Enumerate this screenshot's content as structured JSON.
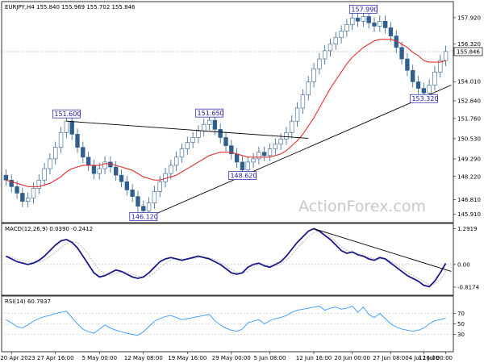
{
  "chart_data": {
    "type": "candlestick",
    "header": "EURJPY,H4  155.840 155.969 155.702 155.846",
    "watermark": "ActionForex.com",
    "colors": {
      "candle": "#2f5f8f",
      "ma": "#e03030",
      "trend": "#000000",
      "macd": "#1a1a8c",
      "signal": "#b8b8b8",
      "rsi": "#3399ff",
      "label_border": "#1a1aa0"
    },
    "price_panel": {
      "ylim": [
        145.5,
        158.8
      ],
      "yticks": [
        "157.920",
        "156.320",
        "154.010",
        "152.840",
        "151.760",
        "150.530",
        "149.290",
        "148.220",
        "146.810",
        "145.910"
      ],
      "ytick_values": [
        157.92,
        156.32,
        154.01,
        152.84,
        151.76,
        150.53,
        149.29,
        148.22,
        146.81,
        145.91
      ],
      "current_price": "155.846",
      "current_value": 155.846,
      "close": [
        148.0,
        147.6,
        147.2,
        146.7,
        146.9,
        147.5,
        148.0,
        148.7,
        149.3,
        150.0,
        150.9,
        151.6,
        150.8,
        150.0,
        149.4,
        148.9,
        148.4,
        148.7,
        149.1,
        148.8,
        148.3,
        147.9,
        147.4,
        147.0,
        146.4,
        146.12,
        146.6,
        147.3,
        147.9,
        148.4,
        148.9,
        149.4,
        149.9,
        150.3,
        150.6,
        151.0,
        151.4,
        151.65,
        151.1,
        150.6,
        150.1,
        149.6,
        149.1,
        148.62,
        149.1,
        149.3,
        149.7,
        149.5,
        149.9,
        150.2,
        150.5,
        150.9,
        151.6,
        152.4,
        153.2,
        154.0,
        154.8,
        155.4,
        155.9,
        156.3,
        156.7,
        157.1,
        157.5,
        157.9,
        157.7,
        157.99,
        157.6,
        157.4,
        157.7,
        157.3,
        156.8,
        156.1,
        155.4,
        154.7,
        154.0,
        153.6,
        153.32,
        153.8,
        154.6,
        155.3,
        155.85
      ],
      "ma": [
        148.0,
        147.9,
        147.8,
        147.7,
        147.6,
        147.6,
        147.6,
        147.7,
        147.8,
        148.0,
        148.2,
        148.5,
        148.7,
        148.8,
        148.9,
        148.9,
        148.9,
        148.9,
        149.0,
        149.0,
        148.9,
        148.8,
        148.7,
        148.6,
        148.4,
        148.2,
        148.1,
        148.0,
        148.0,
        148.1,
        148.2,
        148.3,
        148.5,
        148.7,
        148.9,
        149.1,
        149.3,
        149.5,
        149.6,
        149.7,
        149.7,
        149.7,
        149.6,
        149.5,
        149.4,
        149.4,
        149.4,
        149.4,
        149.4,
        149.5,
        149.6,
        149.8,
        150.1,
        150.4,
        150.8,
        151.3,
        151.8,
        152.4,
        153.0,
        153.6,
        154.1,
        154.6,
        155.1,
        155.5,
        155.8,
        156.1,
        156.3,
        156.5,
        156.6,
        156.6,
        156.6,
        156.5,
        156.3,
        156.1,
        155.8,
        155.6,
        155.3,
        155.2,
        155.2,
        155.2,
        155.3
      ],
      "labels": [
        {
          "text": "157.990",
          "i": 65,
          "v": 157.99,
          "pos": "above"
        },
        {
          "text": "151.600",
          "i": 11,
          "v": 151.6,
          "pos": "above"
        },
        {
          "text": "151.650",
          "i": 37,
          "v": 151.65,
          "pos": "above"
        },
        {
          "text": "148.620",
          "i": 43,
          "v": 148.62,
          "pos": "below"
        },
        {
          "text": "146.120",
          "i": 25,
          "v": 146.12,
          "pos": "below"
        },
        {
          "text": "153.320",
          "i": 76,
          "v": 153.32,
          "pos": "below"
        }
      ],
      "trendlines": [
        {
          "i1": 11,
          "v1": 151.6,
          "i2": 55,
          "v2": 150.55
        },
        {
          "i1": 27,
          "v1": 145.9,
          "i2": 81,
          "v2": 153.8
        }
      ]
    },
    "macd_panel": {
      "title": "MACD(12,26,9) 0.0390 -0.2412",
      "ylim": [
        -1.05,
        1.42
      ],
      "yticks": [
        "1.2919",
        "0.00",
        "-0.8174"
      ],
      "ytick_values": [
        1.2919,
        0.0,
        -0.8174
      ],
      "macd": [
        0.3,
        0.2,
        0.1,
        0.05,
        0.0,
        0.05,
        0.15,
        0.3,
        0.5,
        0.7,
        0.85,
        0.9,
        0.8,
        0.6,
        0.3,
        0.0,
        -0.3,
        -0.45,
        -0.4,
        -0.3,
        -0.2,
        -0.25,
        -0.35,
        -0.45,
        -0.5,
        -0.45,
        -0.3,
        -0.1,
        0.1,
        0.2,
        0.25,
        0.2,
        0.15,
        0.2,
        0.25,
        0.3,
        0.25,
        0.2,
        0.1,
        0.0,
        -0.15,
        -0.3,
        -0.35,
        -0.3,
        -0.1,
        0.0,
        0.05,
        -0.05,
        -0.1,
        0.0,
        0.1,
        0.3,
        0.55,
        0.8,
        1.0,
        1.2,
        1.29,
        1.2,
        1.05,
        0.9,
        0.7,
        0.5,
        0.4,
        0.45,
        0.35,
        0.3,
        0.2,
        0.15,
        0.25,
        0.2,
        0.05,
        -0.1,
        -0.25,
        -0.4,
        -0.5,
        -0.6,
        -0.75,
        -0.8,
        -0.6,
        -0.3,
        0.04
      ],
      "signal": [
        0.3,
        0.27,
        0.2,
        0.15,
        0.1,
        0.06,
        0.08,
        0.15,
        0.3,
        0.45,
        0.6,
        0.75,
        0.82,
        0.78,
        0.6,
        0.35,
        0.05,
        -0.2,
        -0.35,
        -0.38,
        -0.32,
        -0.26,
        -0.28,
        -0.35,
        -0.42,
        -0.46,
        -0.42,
        -0.3,
        -0.12,
        0.05,
        0.16,
        0.21,
        0.2,
        0.19,
        0.21,
        0.25,
        0.27,
        0.24,
        0.18,
        0.08,
        -0.05,
        -0.18,
        -0.28,
        -0.32,
        -0.24,
        -0.1,
        0.0,
        0.0,
        -0.05,
        -0.05,
        0.02,
        0.15,
        0.35,
        0.58,
        0.8,
        1.0,
        1.15,
        1.22,
        1.15,
        1.0,
        0.82,
        0.64,
        0.5,
        0.44,
        0.4,
        0.34,
        0.26,
        0.2,
        0.2,
        0.2,
        0.12,
        0.0,
        -0.14,
        -0.28,
        -0.4,
        -0.5,
        -0.62,
        -0.72,
        -0.7,
        -0.55,
        -0.24
      ],
      "trendline": {
        "i1": 56,
        "v1": 1.29,
        "i2": 81,
        "v2": -0.25
      }
    },
    "rsi_panel": {
      "title": "RSI(14) 60.7937",
      "ylim": [
        0,
        100
      ],
      "yticks": [
        "70",
        "50",
        "30"
      ],
      "ytick_values": [
        70,
        50,
        30
      ],
      "values": [
        58,
        52,
        45,
        42,
        48,
        55,
        60,
        64,
        66,
        70,
        72,
        74,
        62,
        50,
        40,
        35,
        32,
        40,
        48,
        42,
        38,
        35,
        32,
        30,
        28,
        35,
        45,
        55,
        60,
        64,
        66,
        62,
        58,
        60,
        62,
        64,
        66,
        68,
        56,
        48,
        42,
        38,
        36,
        40,
        52,
        55,
        58,
        50,
        56,
        60,
        62,
        66,
        72,
        76,
        78,
        80,
        82,
        84,
        76,
        80,
        82,
        78,
        80,
        84,
        72,
        82,
        68,
        62,
        70,
        60,
        50,
        44,
        40,
        38,
        36,
        38,
        42,
        50,
        56,
        58,
        61
      ]
    },
    "x_axis": {
      "labels": [
        {
          "text": "20 Apr 2023",
          "i": 1
        },
        {
          "text": "27 Apr 16:00",
          "i": 9
        },
        {
          "text": "5 May 00:00",
          "i": 17
        },
        {
          "text": "12 May 08:00",
          "i": 25
        },
        {
          "text": "19 May 16:00",
          "i": 33
        },
        {
          "text": "29 May 00:00",
          "i": 41
        },
        {
          "text": "5 Jun 08:00",
          "i": 48
        },
        {
          "text": "12 Jun 16:00",
          "i": 56
        },
        {
          "text": "20 Jun 00:00",
          "i": 63
        },
        {
          "text": "27 Jun 08:00",
          "i": 70
        },
        {
          "text": "4 Jul 16:00",
          "i": 76
        },
        {
          "text": "12 Jul 00:00",
          "i": 80
        }
      ]
    }
  }
}
